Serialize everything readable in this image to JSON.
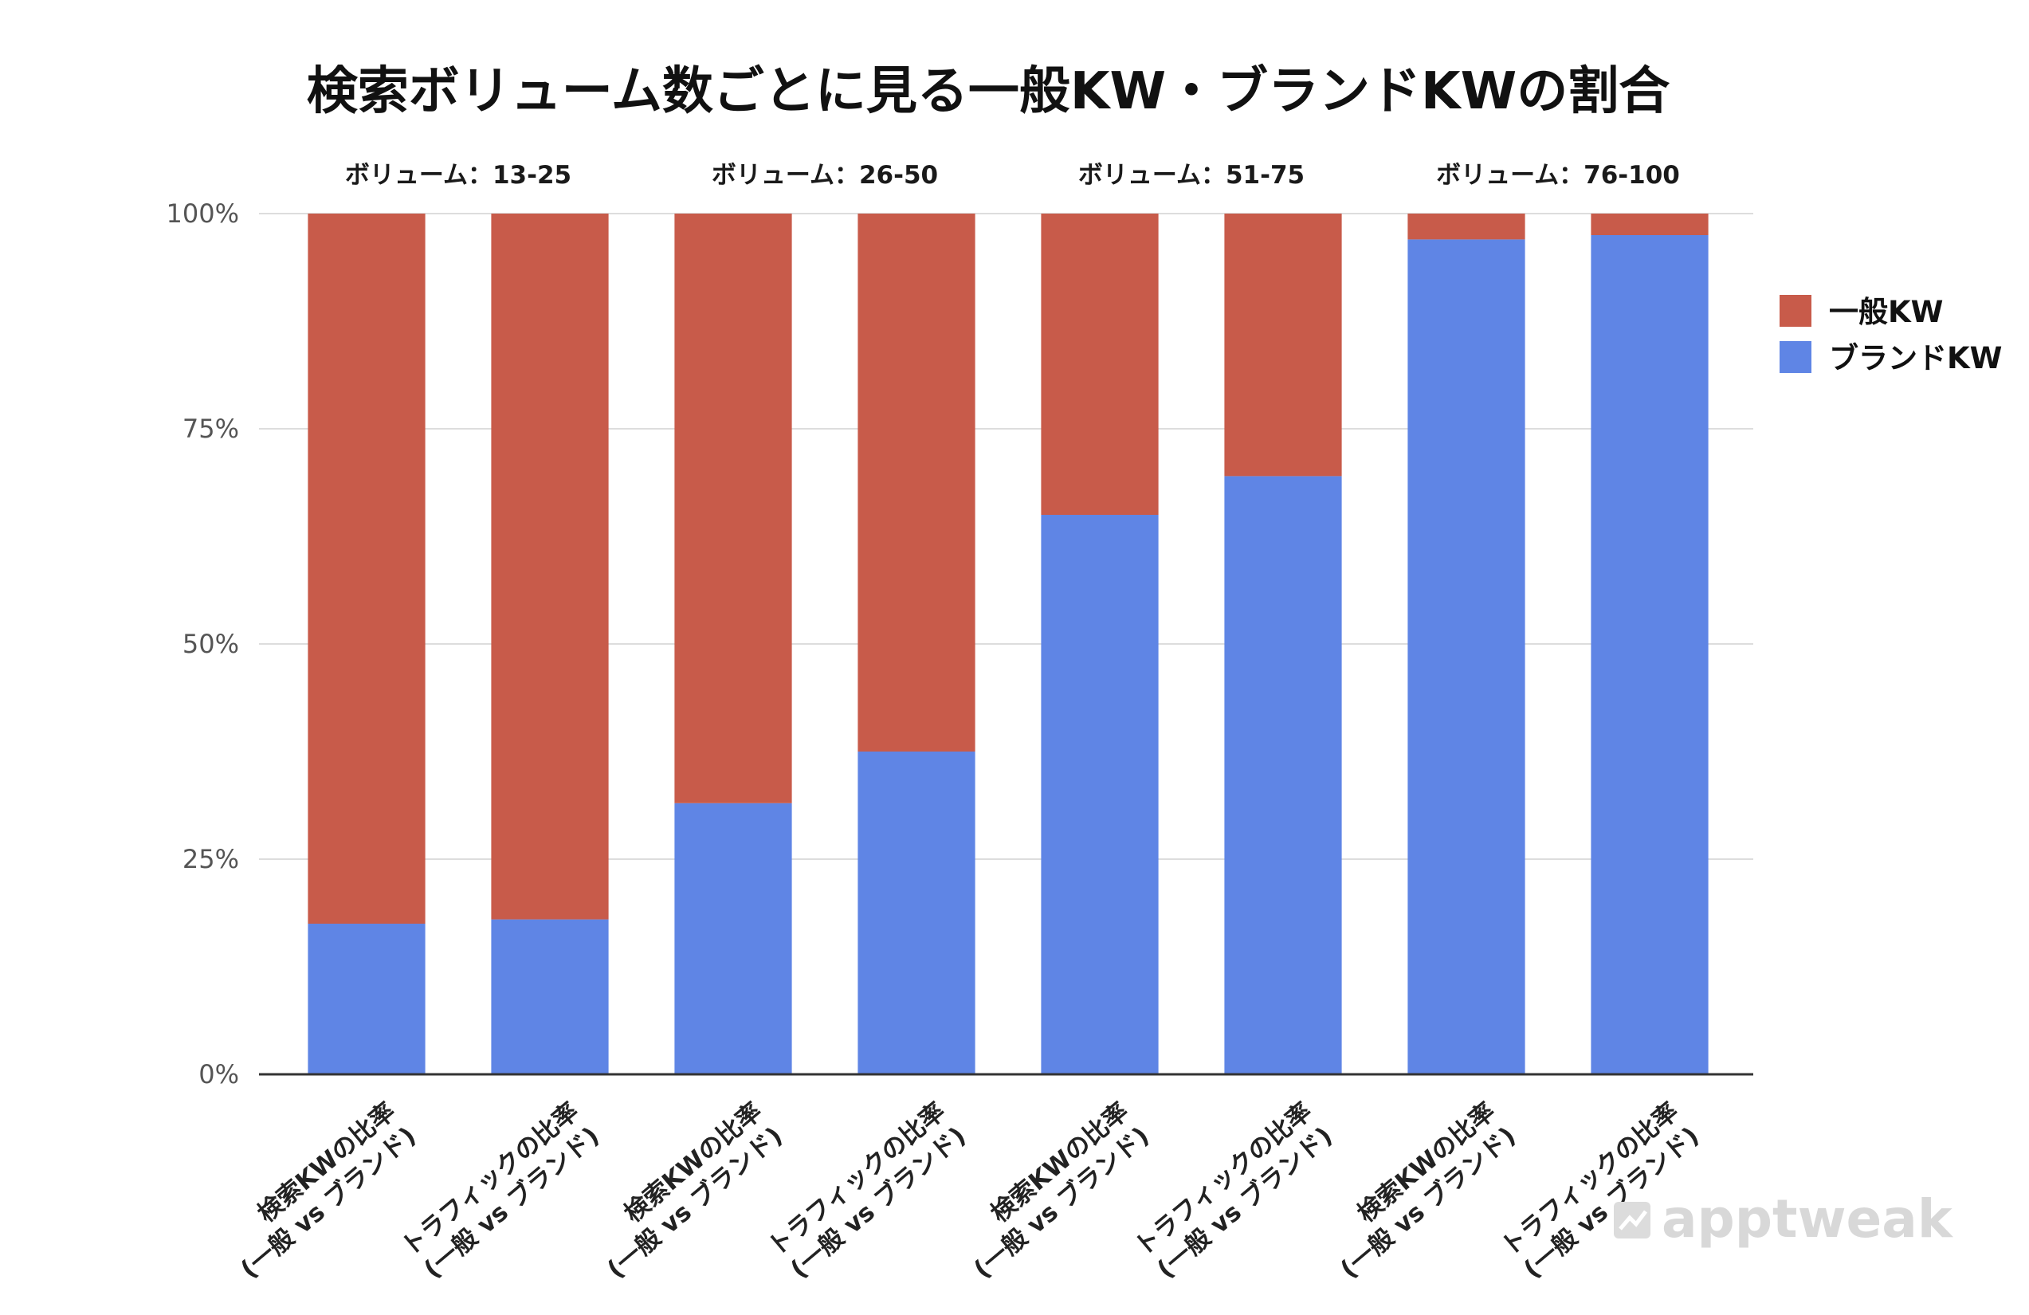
{
  "chart_data": {
    "type": "bar",
    "stacked": true,
    "title": "検索ボリューム数ごとに見る一般KW・ブランドKWの割合",
    "groups": [
      "ボリューム：13-25",
      "ボリューム：26-50",
      "ボリューム：51-75",
      "ボリューム：76-100"
    ],
    "categories": [
      [
        "検索KWの比率",
        "(一般 vs ブランド)"
      ],
      [
        "トラフィックの比率",
        "(一般 vs ブランド)"
      ],
      [
        "検索KWの比率",
        "(一般 vs ブランド)"
      ],
      [
        "トラフィックの比率",
        "(一般 vs ブランド)"
      ],
      [
        "検索KWの比率",
        "(一般 vs ブランド)"
      ],
      [
        "トラフィックの比率",
        "(一般 vs ブランド)"
      ],
      [
        "検索KWの比率",
        "(一般 vs ブランド)"
      ],
      [
        "トラフィックの比率",
        "(一般 vs ブランド)"
      ]
    ],
    "series": [
      {
        "name": "ブランドKW",
        "color": "#5f85e5",
        "values": [
          17.5,
          18,
          31.5,
          37.5,
          65,
          69.5,
          97,
          97.5
        ]
      },
      {
        "name": "一般KW",
        "color": "#c85b4a",
        "values": [
          82.5,
          82,
          68.5,
          62.5,
          35,
          30.5,
          3,
          2.5
        ]
      }
    ],
    "legend_order": [
      "一般KW",
      "ブランドKW"
    ],
    "legend_position": "right",
    "ylim": [
      0,
      100
    ],
    "yticks": [
      "0%",
      "25%",
      "50%",
      "75%",
      "100%"
    ],
    "grid": true
  },
  "watermark": "apptweak"
}
